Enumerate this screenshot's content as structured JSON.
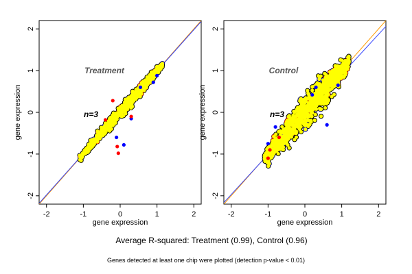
{
  "colors": {
    "yellow": "#ffff00",
    "blue": "#0000ff",
    "red": "#ff0000",
    "black": "#000000",
    "orange": "#ff9900",
    "fitline": "#3344ff"
  },
  "caption": "Average R-squared: Treatment (0.99), Control (0.96)",
  "footnote": "Genes detected at least one chip were plotted (detection p-value < 0.01)",
  "chart_data": [
    {
      "type": "scatter",
      "title": "Treatment",
      "annotation": "n=3",
      "xlabel": "gene expression",
      "ylabel": "gene expression",
      "xlim": [
        -2.2,
        2.2
      ],
      "ylim": [
        -2.2,
        2.2
      ],
      "xticks": [
        "-2",
        "-1",
        "0",
        "1",
        "2"
      ],
      "yticks": [
        "-2",
        "-1",
        "0",
        "1",
        "2"
      ],
      "cloud": {
        "x_range": [
          -1.1,
          1.15
        ],
        "spread": 0.07
      },
      "outliers_blue": [
        [
          1.0,
          0.88
        ],
        [
          0.9,
          0.72
        ],
        [
          0.55,
          0.6
        ],
        [
          -0.1,
          -0.6
        ],
        [
          0.1,
          -0.78
        ],
        [
          0.3,
          -0.15
        ]
      ],
      "outliers_red": [
        [
          -0.08,
          -0.82
        ],
        [
          -0.05,
          -0.98
        ],
        [
          -0.4,
          -0.18
        ],
        [
          -0.2,
          0.28
        ],
        [
          0.3,
          -0.1
        ]
      ],
      "lines": [
        {
          "color": "orange",
          "intercept": 0.0,
          "slope": 1.0
        },
        {
          "color": "fitline",
          "intercept": 0.0,
          "slope": 0.99
        }
      ]
    },
    {
      "type": "scatter",
      "title": "Control",
      "annotation": "n=3",
      "xlabel": "gene expression",
      "ylabel": "gene expression",
      "xlim": [
        -2.2,
        2.2
      ],
      "ylim": [
        -2.2,
        2.2
      ],
      "xticks": [
        "-2",
        "-1",
        "0",
        "1",
        "2"
      ],
      "yticks": [
        "-2",
        "-1",
        "0",
        "1",
        "2"
      ],
      "cloud": {
        "x_range": [
          -1.1,
          1.2
        ],
        "spread": 0.2
      },
      "outliers_blue": [
        [
          -1.0,
          -0.75
        ],
        [
          -0.8,
          -0.35
        ],
        [
          0.3,
          0.6
        ],
        [
          0.6,
          -0.3
        ],
        [
          0.2,
          0.42
        ],
        [
          0.9,
          0.65
        ]
      ],
      "outliers_red": [
        [
          -1.0,
          -1.1
        ],
        [
          -0.95,
          -0.9
        ],
        [
          -0.7,
          -0.6
        ]
      ],
      "lines": [
        {
          "color": "orange",
          "intercept": 0.0,
          "slope": 1.0
        },
        {
          "color": "fitline",
          "intercept": -0.05,
          "slope": 0.96
        }
      ]
    }
  ]
}
